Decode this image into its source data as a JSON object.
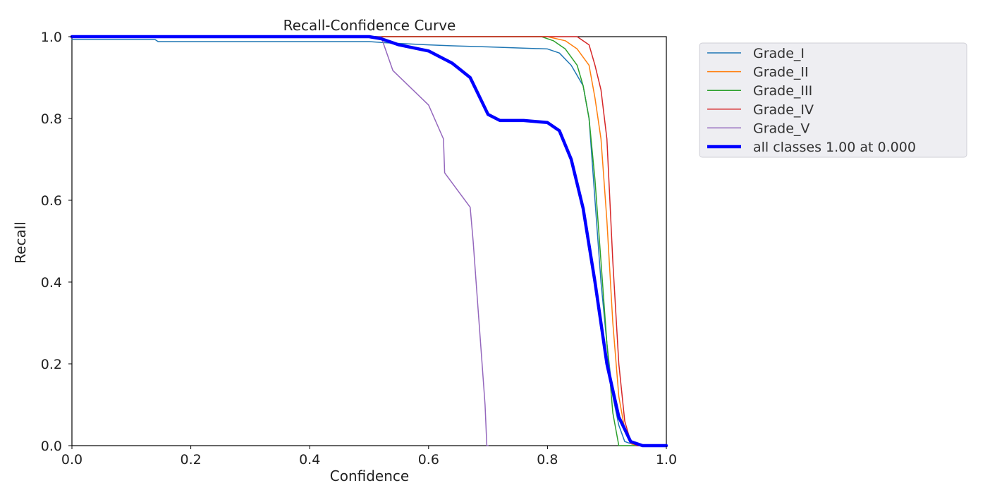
{
  "chart_data": {
    "type": "line",
    "title": "Recall-Confidence Curve",
    "xlabel": "Confidence",
    "ylabel": "Recall",
    "xlim": [
      0,
      1
    ],
    "ylim": [
      0,
      1
    ],
    "xticks": [
      "0.0",
      "0.2",
      "0.4",
      "0.6",
      "0.8",
      "1.0"
    ],
    "yticks": [
      "0.0",
      "0.2",
      "0.4",
      "0.6",
      "0.8",
      "1.0"
    ],
    "grid": false,
    "legend_position": "outside-right-top",
    "series": [
      {
        "name": "Grade_I",
        "color": "#1f77b4",
        "width": "thin",
        "points": [
          [
            0.0,
            0.993
          ],
          [
            0.14,
            0.993
          ],
          [
            0.145,
            0.988
          ],
          [
            0.5,
            0.988
          ],
          [
            0.53,
            0.985
          ],
          [
            0.6,
            0.98
          ],
          [
            0.65,
            0.977
          ],
          [
            0.7,
            0.975
          ],
          [
            0.8,
            0.97
          ],
          [
            0.82,
            0.96
          ],
          [
            0.84,
            0.93
          ],
          [
            0.86,
            0.88
          ],
          [
            0.87,
            0.8
          ],
          [
            0.88,
            0.6
          ],
          [
            0.89,
            0.4
          ],
          [
            0.9,
            0.25
          ],
          [
            0.91,
            0.12
          ],
          [
            0.92,
            0.05
          ],
          [
            0.93,
            0.01
          ],
          [
            0.95,
            0.0
          ],
          [
            1.0,
            0.0
          ]
        ]
      },
      {
        "name": "Grade_II",
        "color": "#ff7f0e",
        "width": "thin",
        "points": [
          [
            0.0,
            1.0
          ],
          [
            0.8,
            1.0
          ],
          [
            0.83,
            0.99
          ],
          [
            0.85,
            0.97
          ],
          [
            0.87,
            0.93
          ],
          [
            0.88,
            0.85
          ],
          [
            0.89,
            0.75
          ],
          [
            0.9,
            0.55
          ],
          [
            0.91,
            0.3
          ],
          [
            0.92,
            0.12
          ],
          [
            0.93,
            0.04
          ],
          [
            0.94,
            0.005
          ],
          [
            0.95,
            0.0
          ],
          [
            1.0,
            0.0
          ]
        ]
      },
      {
        "name": "Grade_III",
        "color": "#2ca02c",
        "width": "thin",
        "points": [
          [
            0.0,
            1.0
          ],
          [
            0.79,
            1.0
          ],
          [
            0.81,
            0.99
          ],
          [
            0.83,
            0.97
          ],
          [
            0.85,
            0.93
          ],
          [
            0.86,
            0.88
          ],
          [
            0.87,
            0.8
          ],
          [
            0.88,
            0.65
          ],
          [
            0.89,
            0.45
          ],
          [
            0.9,
            0.25
          ],
          [
            0.91,
            0.08
          ],
          [
            0.92,
            0.0
          ],
          [
            1.0,
            0.0
          ]
        ]
      },
      {
        "name": "Grade_IV",
        "color": "#d62728",
        "width": "thin",
        "points": [
          [
            0.0,
            1.0
          ],
          [
            0.85,
            1.0
          ],
          [
            0.87,
            0.98
          ],
          [
            0.88,
            0.93
          ],
          [
            0.89,
            0.87
          ],
          [
            0.9,
            0.75
          ],
          [
            0.91,
            0.45
          ],
          [
            0.92,
            0.2
          ],
          [
            0.93,
            0.06
          ],
          [
            0.94,
            0.01
          ],
          [
            0.95,
            0.0
          ],
          [
            1.0,
            0.0
          ]
        ]
      },
      {
        "name": "Grade_V",
        "color": "#9467bd",
        "width": "thin",
        "points": [
          [
            0.0,
            1.0
          ],
          [
            0.52,
            1.0
          ],
          [
            0.54,
            0.917
          ],
          [
            0.6,
            0.833
          ],
          [
            0.625,
            0.75
          ],
          [
            0.627,
            0.667
          ],
          [
            0.67,
            0.583
          ],
          [
            0.675,
            0.5
          ],
          [
            0.68,
            0.4
          ],
          [
            0.69,
            0.2
          ],
          [
            0.695,
            0.1
          ],
          [
            0.698,
            0.0
          ],
          [
            0.7,
            0.0
          ]
        ]
      },
      {
        "name": "all classes 1.00 at 0.000",
        "color": "#0000ff",
        "width": "thick",
        "points": [
          [
            0.0,
            1.0
          ],
          [
            0.5,
            1.0
          ],
          [
            0.52,
            0.995
          ],
          [
            0.55,
            0.98
          ],
          [
            0.6,
            0.965
          ],
          [
            0.64,
            0.935
          ],
          [
            0.67,
            0.9
          ],
          [
            0.69,
            0.84
          ],
          [
            0.7,
            0.81
          ],
          [
            0.72,
            0.795
          ],
          [
            0.76,
            0.795
          ],
          [
            0.8,
            0.79
          ],
          [
            0.82,
            0.77
          ],
          [
            0.84,
            0.7
          ],
          [
            0.86,
            0.58
          ],
          [
            0.88,
            0.4
          ],
          [
            0.9,
            0.2
          ],
          [
            0.92,
            0.07
          ],
          [
            0.94,
            0.01
          ],
          [
            0.96,
            0.0
          ],
          [
            1.0,
            0.0
          ]
        ]
      }
    ]
  }
}
